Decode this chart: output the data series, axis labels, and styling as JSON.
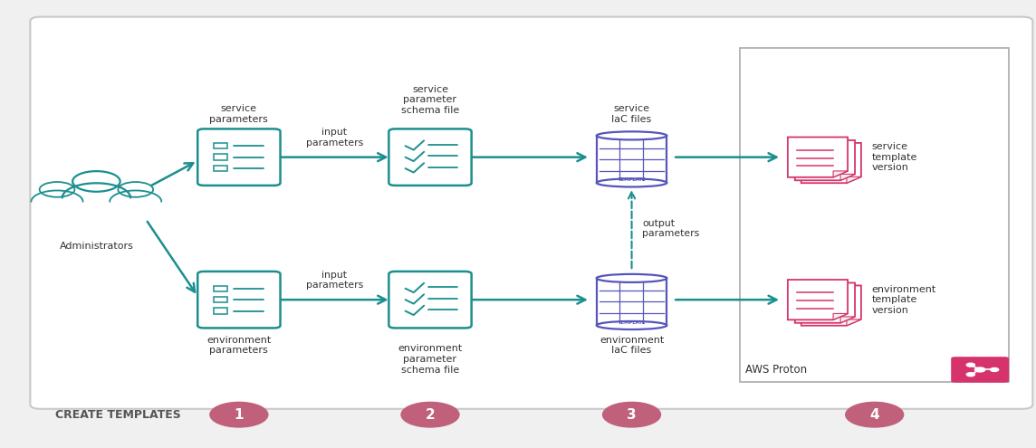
{
  "bg_color": "#f0f0f0",
  "panel_bg": "#ffffff",
  "teal": "#1b8f8f",
  "pink": "#d6336c",
  "purple": "#5555bb",
  "step_circle_color": "#c0607a",
  "border_color": "#bbbbbb",
  "title_text": "CREATE TEMPLATES",
  "step_numbers": [
    "1",
    "2",
    "3",
    "4"
  ],
  "labels": {
    "administrators": "Administrators",
    "service_params": "service\nparameters",
    "service_schema": "service\nparameter\nschema file",
    "service_iac": "service\nIaC files",
    "service_template": "service\ntemplate\nversion",
    "env_params": "environment\nparameters",
    "env_schema": "environment\nparameter\nschema file",
    "env_iac": "environment\nIaC files",
    "env_template": "environment\ntemplate\nversion",
    "input_params_top": "input\nparameters",
    "input_params_bottom": "input\nparameters",
    "output_params": "output\nparameters",
    "aws_proton": "AWS Proton"
  }
}
